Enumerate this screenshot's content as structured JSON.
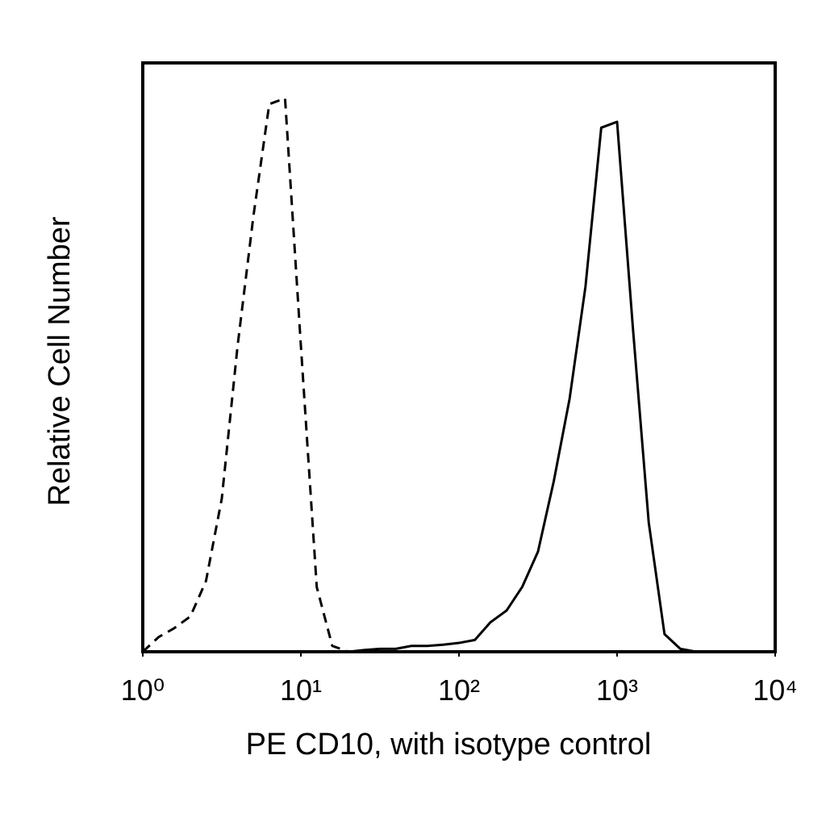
{
  "chart_data": {
    "type": "line",
    "x_label": "PE CD10, with isotype control",
    "y_label": "Relative Cell Number",
    "x_log": true,
    "xlim": [
      1,
      10000
    ],
    "xticks": [
      {
        "value": 1,
        "label": "10⁰"
      },
      {
        "value": 10,
        "label": "10¹"
      },
      {
        "value": 100,
        "label": "10²"
      },
      {
        "value": 1000,
        "label": "10³"
      },
      {
        "value": 10000,
        "label": "10⁴"
      }
    ],
    "ylim": [
      0,
      100
    ],
    "x": [
      1,
      1.26,
      1.58,
      2,
      2.51,
      3.16,
      3.98,
      5.01,
      6.31,
      7.94,
      10,
      12.6,
      15.8,
      20,
      25.1,
      31.6,
      39.8,
      50.1,
      63.1,
      79.4,
      100,
      126,
      158,
      200,
      251,
      316,
      398,
      501,
      631,
      794,
      1000,
      1259,
      1585,
      1995,
      2512,
      3162,
      3981
    ],
    "series": [
      {
        "color": "#000000",
        "dashed": true,
        "values": [
          0,
          2.5,
          4,
          6,
          12,
          26,
          52,
          74,
          93,
          94,
          52,
          11,
          1,
          0,
          0,
          0,
          0,
          null,
          null,
          null,
          null,
          null,
          null,
          null,
          null,
          null,
          null,
          null,
          null,
          null,
          null,
          null,
          null,
          null,
          null,
          null,
          null
        ]
      },
      {
        "color": "#000000",
        "dashed": false,
        "values": [
          null,
          null,
          null,
          null,
          null,
          null,
          null,
          null,
          null,
          null,
          null,
          null,
          null,
          0,
          0.3,
          0.5,
          0.5,
          1,
          1,
          1.2,
          1.5,
          2,
          5,
          7,
          11,
          17,
          29,
          43,
          62,
          89,
          90,
          55,
          22,
          3,
          0.5,
          0,
          0
        ]
      }
    ]
  }
}
